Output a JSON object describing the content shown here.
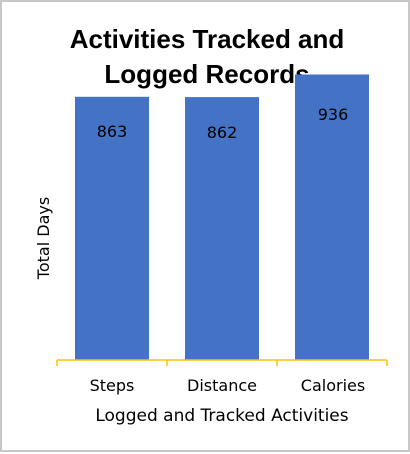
{
  "chart_data": {
    "type": "bar",
    "title_lines": [
      "Activities Tracked and",
      "Logged Records"
    ],
    "categories": [
      "Steps",
      "Distance",
      "Calories"
    ],
    "values": [
      863,
      862,
      936
    ],
    "data_labels": [
      "863",
      "862",
      "936"
    ],
    "xlabel": "Logged and Tracked Activities",
    "ylabel": "Total Days",
    "ylim": [
      0,
      1000
    ],
    "grid": false,
    "legend": "none",
    "colors": {
      "bar": "#4472C4",
      "axis": "#FFC000",
      "border": "#C8C8C8"
    }
  }
}
